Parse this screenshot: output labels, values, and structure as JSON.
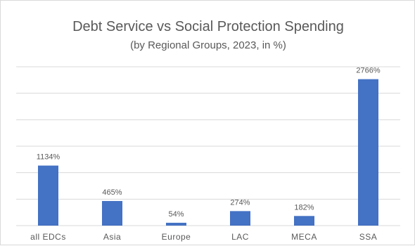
{
  "chart_data": {
    "type": "bar",
    "title": "Debt Service vs Social Protection Spending",
    "subtitle": "(by Regional Groups, 2023, in %)",
    "categories": [
      "all EDCs",
      "Asia",
      "Europe",
      "LAC",
      "MECA",
      "SSA"
    ],
    "values": [
      1134,
      465,
      54,
      274,
      182,
      2766
    ],
    "data_labels": [
      "1134%",
      "465%",
      "54%",
      "274%",
      "182%",
      "2766%"
    ],
    "ylim": [
      0,
      3000
    ],
    "y_gridlines": [
      0,
      500,
      1000,
      1500,
      2000,
      2500,
      3000
    ],
    "grid": true,
    "legend": "none",
    "bar_color": "#4472c4"
  }
}
